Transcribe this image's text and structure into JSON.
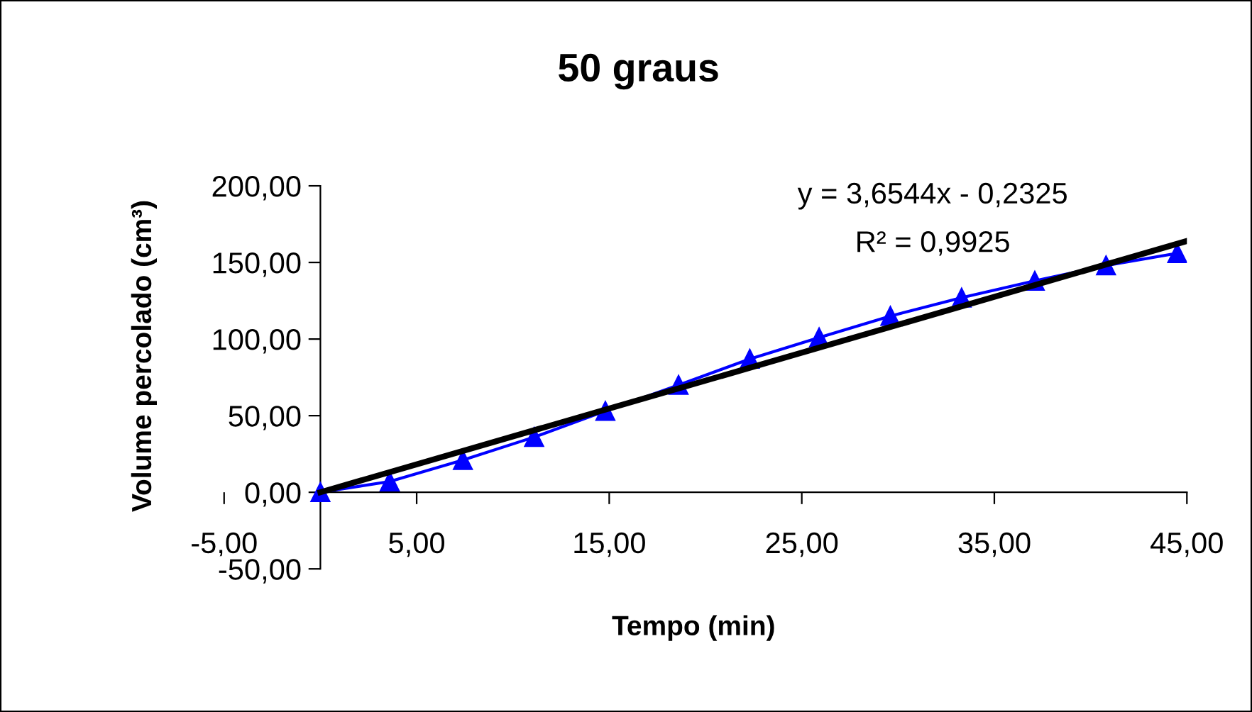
{
  "chart_data": {
    "type": "line",
    "title": "50 graus",
    "xlabel": "Tempo (min)",
    "ylabel": "Volume percolado (cm³)",
    "annotations": [
      "y = 3,6544x - 0,2325",
      "R² = 0,9925"
    ],
    "series": [
      {
        "color": "#0000ff",
        "marker": "triangle",
        "x": [
          0,
          3.6,
          7.4,
          11.1,
          14.8,
          18.6,
          22.3,
          25.9,
          29.6,
          33.3,
          37.1,
          40.8,
          44.5
        ],
        "values": [
          0,
          7,
          21,
          36,
          53,
          70,
          87,
          101,
          115,
          127,
          138,
          148,
          156
        ]
      },
      {
        "type": "line",
        "color": "#000000",
        "marker": "none",
        "x": [
          0,
          45
        ],
        "values": [
          0,
          164
        ]
      }
    ],
    "xlim": [
      -5,
      45
    ],
    "xticks": [
      {
        "value": -5,
        "label": "-5,00"
      },
      {
        "value": 5,
        "label": "5,00"
      },
      {
        "value": 15,
        "label": "15,00"
      },
      {
        "value": 25,
        "label": "25,00"
      },
      {
        "value": 35,
        "label": "35,00"
      },
      {
        "value": 45,
        "label": "45,00"
      }
    ],
    "ylim": [
      -50,
      200
    ],
    "yticks": [
      {
        "value": -50,
        "label": "-50,00"
      },
      {
        "value": 0,
        "label": "0,00"
      },
      {
        "value": 50,
        "label": "50,00"
      },
      {
        "value": 100,
        "label": "100,00"
      },
      {
        "value": 150,
        "label": "150,00"
      },
      {
        "value": 200,
        "label": "200,00"
      }
    ],
    "grid": false,
    "legend": false
  }
}
